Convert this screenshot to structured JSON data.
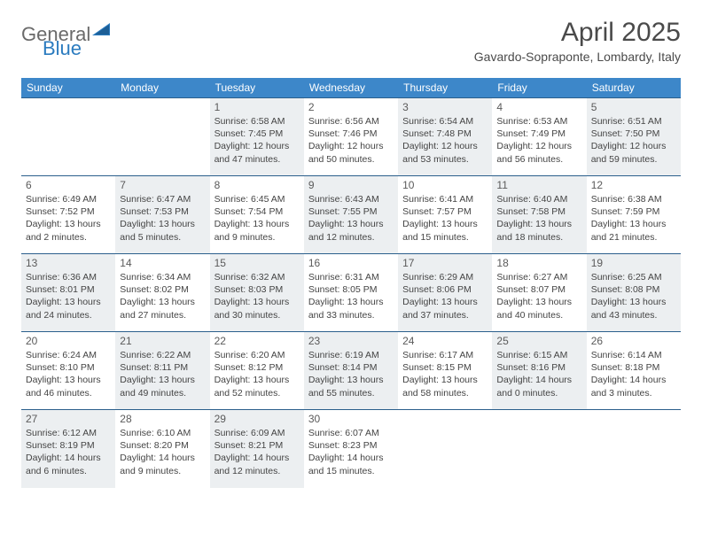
{
  "logo": {
    "general": "General",
    "blue": "Blue"
  },
  "header": {
    "month_title": "April 2025",
    "location": "Gavardo-Sopraponte, Lombardy, Italy"
  },
  "colors": {
    "header_bg": "#3d87c9",
    "header_text": "#ffffff",
    "cell_border": "#2b5f8c",
    "shaded_bg": "#eceff1",
    "logo_gray": "#6a6a6a",
    "logo_blue": "#2b7bbf"
  },
  "day_headers": [
    "Sunday",
    "Monday",
    "Tuesday",
    "Wednesday",
    "Thursday",
    "Friday",
    "Saturday"
  ],
  "weeks": [
    [
      {
        "day": "",
        "shaded": false,
        "sunrise": "",
        "sunset": "",
        "daylight1": "",
        "daylight2": ""
      },
      {
        "day": "",
        "shaded": false,
        "sunrise": "",
        "sunset": "",
        "daylight1": "",
        "daylight2": ""
      },
      {
        "day": "1",
        "shaded": true,
        "sunrise": "Sunrise: 6:58 AM",
        "sunset": "Sunset: 7:45 PM",
        "daylight1": "Daylight: 12 hours",
        "daylight2": "and 47 minutes."
      },
      {
        "day": "2",
        "shaded": false,
        "sunrise": "Sunrise: 6:56 AM",
        "sunset": "Sunset: 7:46 PM",
        "daylight1": "Daylight: 12 hours",
        "daylight2": "and 50 minutes."
      },
      {
        "day": "3",
        "shaded": true,
        "sunrise": "Sunrise: 6:54 AM",
        "sunset": "Sunset: 7:48 PM",
        "daylight1": "Daylight: 12 hours",
        "daylight2": "and 53 minutes."
      },
      {
        "day": "4",
        "shaded": false,
        "sunrise": "Sunrise: 6:53 AM",
        "sunset": "Sunset: 7:49 PM",
        "daylight1": "Daylight: 12 hours",
        "daylight2": "and 56 minutes."
      },
      {
        "day": "5",
        "shaded": true,
        "sunrise": "Sunrise: 6:51 AM",
        "sunset": "Sunset: 7:50 PM",
        "daylight1": "Daylight: 12 hours",
        "daylight2": "and 59 minutes."
      }
    ],
    [
      {
        "day": "6",
        "shaded": false,
        "sunrise": "Sunrise: 6:49 AM",
        "sunset": "Sunset: 7:52 PM",
        "daylight1": "Daylight: 13 hours",
        "daylight2": "and 2 minutes."
      },
      {
        "day": "7",
        "shaded": true,
        "sunrise": "Sunrise: 6:47 AM",
        "sunset": "Sunset: 7:53 PM",
        "daylight1": "Daylight: 13 hours",
        "daylight2": "and 5 minutes."
      },
      {
        "day": "8",
        "shaded": false,
        "sunrise": "Sunrise: 6:45 AM",
        "sunset": "Sunset: 7:54 PM",
        "daylight1": "Daylight: 13 hours",
        "daylight2": "and 9 minutes."
      },
      {
        "day": "9",
        "shaded": true,
        "sunrise": "Sunrise: 6:43 AM",
        "sunset": "Sunset: 7:55 PM",
        "daylight1": "Daylight: 13 hours",
        "daylight2": "and 12 minutes."
      },
      {
        "day": "10",
        "shaded": false,
        "sunrise": "Sunrise: 6:41 AM",
        "sunset": "Sunset: 7:57 PM",
        "daylight1": "Daylight: 13 hours",
        "daylight2": "and 15 minutes."
      },
      {
        "day": "11",
        "shaded": true,
        "sunrise": "Sunrise: 6:40 AM",
        "sunset": "Sunset: 7:58 PM",
        "daylight1": "Daylight: 13 hours",
        "daylight2": "and 18 minutes."
      },
      {
        "day": "12",
        "shaded": false,
        "sunrise": "Sunrise: 6:38 AM",
        "sunset": "Sunset: 7:59 PM",
        "daylight1": "Daylight: 13 hours",
        "daylight2": "and 21 minutes."
      }
    ],
    [
      {
        "day": "13",
        "shaded": true,
        "sunrise": "Sunrise: 6:36 AM",
        "sunset": "Sunset: 8:01 PM",
        "daylight1": "Daylight: 13 hours",
        "daylight2": "and 24 minutes."
      },
      {
        "day": "14",
        "shaded": false,
        "sunrise": "Sunrise: 6:34 AM",
        "sunset": "Sunset: 8:02 PM",
        "daylight1": "Daylight: 13 hours",
        "daylight2": "and 27 minutes."
      },
      {
        "day": "15",
        "shaded": true,
        "sunrise": "Sunrise: 6:32 AM",
        "sunset": "Sunset: 8:03 PM",
        "daylight1": "Daylight: 13 hours",
        "daylight2": "and 30 minutes."
      },
      {
        "day": "16",
        "shaded": false,
        "sunrise": "Sunrise: 6:31 AM",
        "sunset": "Sunset: 8:05 PM",
        "daylight1": "Daylight: 13 hours",
        "daylight2": "and 33 minutes."
      },
      {
        "day": "17",
        "shaded": true,
        "sunrise": "Sunrise: 6:29 AM",
        "sunset": "Sunset: 8:06 PM",
        "daylight1": "Daylight: 13 hours",
        "daylight2": "and 37 minutes."
      },
      {
        "day": "18",
        "shaded": false,
        "sunrise": "Sunrise: 6:27 AM",
        "sunset": "Sunset: 8:07 PM",
        "daylight1": "Daylight: 13 hours",
        "daylight2": "and 40 minutes."
      },
      {
        "day": "19",
        "shaded": true,
        "sunrise": "Sunrise: 6:25 AM",
        "sunset": "Sunset: 8:08 PM",
        "daylight1": "Daylight: 13 hours",
        "daylight2": "and 43 minutes."
      }
    ],
    [
      {
        "day": "20",
        "shaded": false,
        "sunrise": "Sunrise: 6:24 AM",
        "sunset": "Sunset: 8:10 PM",
        "daylight1": "Daylight: 13 hours",
        "daylight2": "and 46 minutes."
      },
      {
        "day": "21",
        "shaded": true,
        "sunrise": "Sunrise: 6:22 AM",
        "sunset": "Sunset: 8:11 PM",
        "daylight1": "Daylight: 13 hours",
        "daylight2": "and 49 minutes."
      },
      {
        "day": "22",
        "shaded": false,
        "sunrise": "Sunrise: 6:20 AM",
        "sunset": "Sunset: 8:12 PM",
        "daylight1": "Daylight: 13 hours",
        "daylight2": "and 52 minutes."
      },
      {
        "day": "23",
        "shaded": true,
        "sunrise": "Sunrise: 6:19 AM",
        "sunset": "Sunset: 8:14 PM",
        "daylight1": "Daylight: 13 hours",
        "daylight2": "and 55 minutes."
      },
      {
        "day": "24",
        "shaded": false,
        "sunrise": "Sunrise: 6:17 AM",
        "sunset": "Sunset: 8:15 PM",
        "daylight1": "Daylight: 13 hours",
        "daylight2": "and 58 minutes."
      },
      {
        "day": "25",
        "shaded": true,
        "sunrise": "Sunrise: 6:15 AM",
        "sunset": "Sunset: 8:16 PM",
        "daylight1": "Daylight: 14 hours",
        "daylight2": "and 0 minutes."
      },
      {
        "day": "26",
        "shaded": false,
        "sunrise": "Sunrise: 6:14 AM",
        "sunset": "Sunset: 8:18 PM",
        "daylight1": "Daylight: 14 hours",
        "daylight2": "and 3 minutes."
      }
    ],
    [
      {
        "day": "27",
        "shaded": true,
        "sunrise": "Sunrise: 6:12 AM",
        "sunset": "Sunset: 8:19 PM",
        "daylight1": "Daylight: 14 hours",
        "daylight2": "and 6 minutes."
      },
      {
        "day": "28",
        "shaded": false,
        "sunrise": "Sunrise: 6:10 AM",
        "sunset": "Sunset: 8:20 PM",
        "daylight1": "Daylight: 14 hours",
        "daylight2": "and 9 minutes."
      },
      {
        "day": "29",
        "shaded": true,
        "sunrise": "Sunrise: 6:09 AM",
        "sunset": "Sunset: 8:21 PM",
        "daylight1": "Daylight: 14 hours",
        "daylight2": "and 12 minutes."
      },
      {
        "day": "30",
        "shaded": false,
        "sunrise": "Sunrise: 6:07 AM",
        "sunset": "Sunset: 8:23 PM",
        "daylight1": "Daylight: 14 hours",
        "daylight2": "and 15 minutes."
      },
      {
        "day": "",
        "shaded": false,
        "sunrise": "",
        "sunset": "",
        "daylight1": "",
        "daylight2": ""
      },
      {
        "day": "",
        "shaded": false,
        "sunrise": "",
        "sunset": "",
        "daylight1": "",
        "daylight2": ""
      },
      {
        "day": "",
        "shaded": false,
        "sunrise": "",
        "sunset": "",
        "daylight1": "",
        "daylight2": ""
      }
    ]
  ]
}
